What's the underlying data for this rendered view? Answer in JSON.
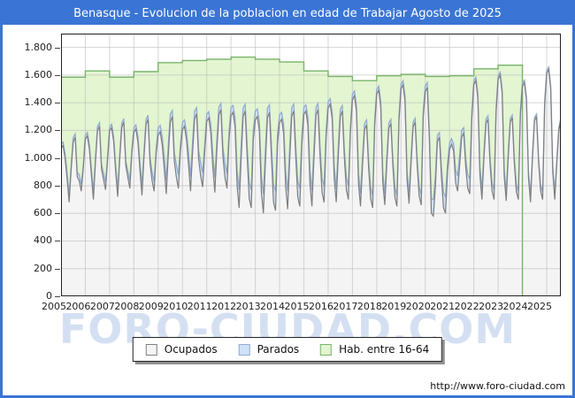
{
  "window": {
    "title": "Benasque - Evolucion de la poblacion en edad de Trabajar Agosto de 2025"
  },
  "watermark": "FORO-CIUDAD.COM",
  "footer": {
    "url": "http://www.foro-ciudad.com"
  },
  "colors": {
    "frame_and_titlebar": "#3a75d5",
    "title_text": "#ffffff",
    "watermark_text": "#b9cdeb",
    "gridline": "#bfbfbf",
    "plot_border": "#222222"
  },
  "legend": {
    "position": "bottom-center",
    "items": [
      {
        "label": "Ocupados",
        "fill": "#f4f4f4",
        "stroke": "#7f7f7f"
      },
      {
        "label": "Parados",
        "fill": "#cfe1f6",
        "stroke": "#93acd0"
      },
      {
        "label": "Hab. entre 16-64",
        "fill": "#e3f5d1",
        "stroke": "#79b469"
      }
    ]
  },
  "chart_data": {
    "type": "area",
    "title": "Benasque - Evolucion de la poblacion en edad de Trabajar Agosto de 2025",
    "x_unit": "month",
    "x_start": "2005-01",
    "x_end": "2025-08",
    "xlabel": "",
    "ylabel": "",
    "ylim": [
      0,
      1900
    ],
    "grid": true,
    "y_ticks": [
      "0",
      "200",
      "400",
      "600",
      "800",
      "1.000",
      "1.200",
      "1.400",
      "1.600",
      "1.800"
    ],
    "y_tick_values": [
      0,
      200,
      400,
      600,
      800,
      1000,
      1200,
      1400,
      1600,
      1800
    ],
    "x_tick_labels": [
      "2005",
      "2006",
      "2007",
      "2008",
      "2009",
      "2010",
      "2011",
      "2012",
      "2013",
      "2014",
      "2015",
      "2016",
      "2017",
      "2018",
      "2019",
      "2020",
      "2021",
      "2022",
      "2023",
      "2024",
      "2025"
    ],
    "series": [
      {
        "name": "Ocupados",
        "role": "stack-base",
        "resolution": "monthly",
        "values": [
          1070,
          1090,
          1000,
          850,
          680,
          915,
          1115,
          1150,
          865,
          835,
          760,
          925,
          1135,
          1160,
          1065,
          875,
          700,
          965,
          1195,
          1230,
          920,
          845,
          770,
          985,
          1195,
          1220,
          1120,
          900,
          720,
          990,
          1220,
          1260,
          945,
          860,
          780,
          1035,
          1185,
          1210,
          1115,
          910,
          730,
          1005,
          1240,
          1280,
          960,
          835,
          760,
          1030,
          1165,
          1190,
          1095,
          925,
          740,
          1020,
          1260,
          1300,
          975,
          860,
          780,
          1045,
          1205,
          1230,
          1130,
          950,
          760,
          1040,
          1280,
          1320,
          990,
          870,
          790,
          1045,
          1265,
          1290,
          1185,
          935,
          750,
          1050,
          1310,
          1350,
          1010,
          860,
          780,
          1130,
          1305,
          1330,
          1225,
          800,
          640,
          990,
          1300,
          1340,
          1005,
          705,
          640,
          1130,
          1275,
          1300,
          1195,
          750,
          600,
          965,
          1290,
          1330,
          1000,
          680,
          620,
          1105,
          1255,
          1280,
          1180,
          790,
          630,
          985,
          1300,
          1340,
          1005,
          715,
          650,
          1090,
          1315,
          1340,
          1235,
          815,
          650,
          1000,
          1310,
          1350,
          1010,
          750,
          680,
          1140,
          1360,
          1390,
          1280,
          850,
          680,
          1010,
          1300,
          1340,
          1005,
          770,
          700,
          1180,
          1420,
          1450,
          1335,
          815,
          650,
          945,
          1205,
          1240,
          930,
          705,
          640,
          1230,
          1460,
          1490,
          1370,
          825,
          660,
          955,
          1215,
          1250,
          940,
          715,
          650,
          1265,
          1500,
          1530,
          1410,
          840,
          670,
          965,
          1225,
          1260,
          945,
          725,
          660,
          1300,
          1480,
          1510,
          1150,
          600,
          580,
          790,
          1120,
          1150,
          860,
          640,
          600,
          900,
          1060,
          1100,
          1050,
          820,
          760,
          950,
          1150,
          1180,
          930,
          780,
          740,
          1280,
          1530,
          1560,
          1430,
          880,
          700,
          1000,
          1250,
          1280,
          960,
          760,
          700,
          1330,
          1570,
          1600,
          1470,
          870,
          690,
          1000,
          1260,
          1290,
          965,
          755,
          700,
          1310,
          1520,
          1545,
          1420,
          860,
          680,
          1005,
          1270,
          1300,
          970,
          760,
          700,
          1380,
          1610,
          1640,
          1500,
          900,
          700,
          960,
          1200,
          1270
        ]
      },
      {
        "name": "Parados",
        "role": "stacked-on-Ocupados",
        "resolution": "monthly",
        "values": [
          30,
          25,
          33,
          43,
          50,
          35,
          33,
          25,
          30,
          45,
          50,
          25,
          30,
          25,
          33,
          47,
          55,
          39,
          33,
          25,
          33,
          50,
          55,
          28,
          30,
          25,
          33,
          47,
          55,
          39,
          33,
          25,
          33,
          50,
          55,
          28,
          36,
          30,
          39,
          60,
          70,
          49,
          39,
          30,
          42,
          63,
          70,
          35,
          54,
          45,
          59,
          85,
          100,
          70,
          59,
          45,
          60,
          90,
          100,
          50,
          54,
          45,
          59,
          89,
          105,
          74,
          59,
          45,
          63,
          95,
          105,
          53,
          54,
          45,
          59,
          94,
          110,
          77,
          59,
          45,
          66,
          99,
          110,
          55,
          60,
          50,
          65,
          111,
          130,
          91,
          65,
          50,
          78,
          117,
          130,
          65,
          66,
          55,
          72,
          119,
          140,
          98,
          72,
          55,
          84,
          126,
          140,
          70,
          60,
          50,
          65,
          111,
          130,
          91,
          65,
          50,
          78,
          117,
          130,
          65,
          54,
          45,
          59,
          98,
          115,
          81,
          59,
          45,
          69,
          104,
          115,
          58,
          48,
          40,
          52,
          85,
          100,
          70,
          52,
          40,
          60,
          90,
          100,
          50,
          42,
          35,
          46,
          77,
          90,
          63,
          46,
          35,
          54,
          81,
          90,
          45,
          36,
          30,
          39,
          68,
          80,
          56,
          39,
          30,
          48,
          72,
          80,
          40,
          34,
          28,
          36,
          64,
          75,
          53,
          36,
          28,
          45,
          68,
          75,
          38,
          42,
          35,
          46,
          102,
          120,
          84,
          46,
          35,
          72,
          108,
          120,
          60,
          48,
          40,
          52,
          94,
          110,
          77,
          52,
          40,
          66,
          99,
          110,
          55,
          30,
          25,
          33,
          60,
          70,
          49,
          33,
          25,
          42,
          63,
          70,
          35,
          24,
          20,
          26,
          51,
          60,
          42,
          26,
          20,
          36,
          54,
          60,
          30,
          22,
          18,
          23,
          47,
          55,
          39,
          23,
          18,
          33,
          50,
          55,
          28,
          22,
          18,
          23,
          43,
          50,
          35,
          23,
          18
        ]
      },
      {
        "name": "Hab. entre 16-64",
        "role": "background-step",
        "resolution": "yearly",
        "year_start": 2005,
        "year_end": 2023,
        "values": [
          1585,
          1630,
          1585,
          1625,
          1690,
          1705,
          1715,
          1730,
          1715,
          1695,
          1630,
          1590,
          1560,
          1595,
          1605,
          1590,
          1595,
          1645,
          1672
        ]
      }
    ]
  }
}
